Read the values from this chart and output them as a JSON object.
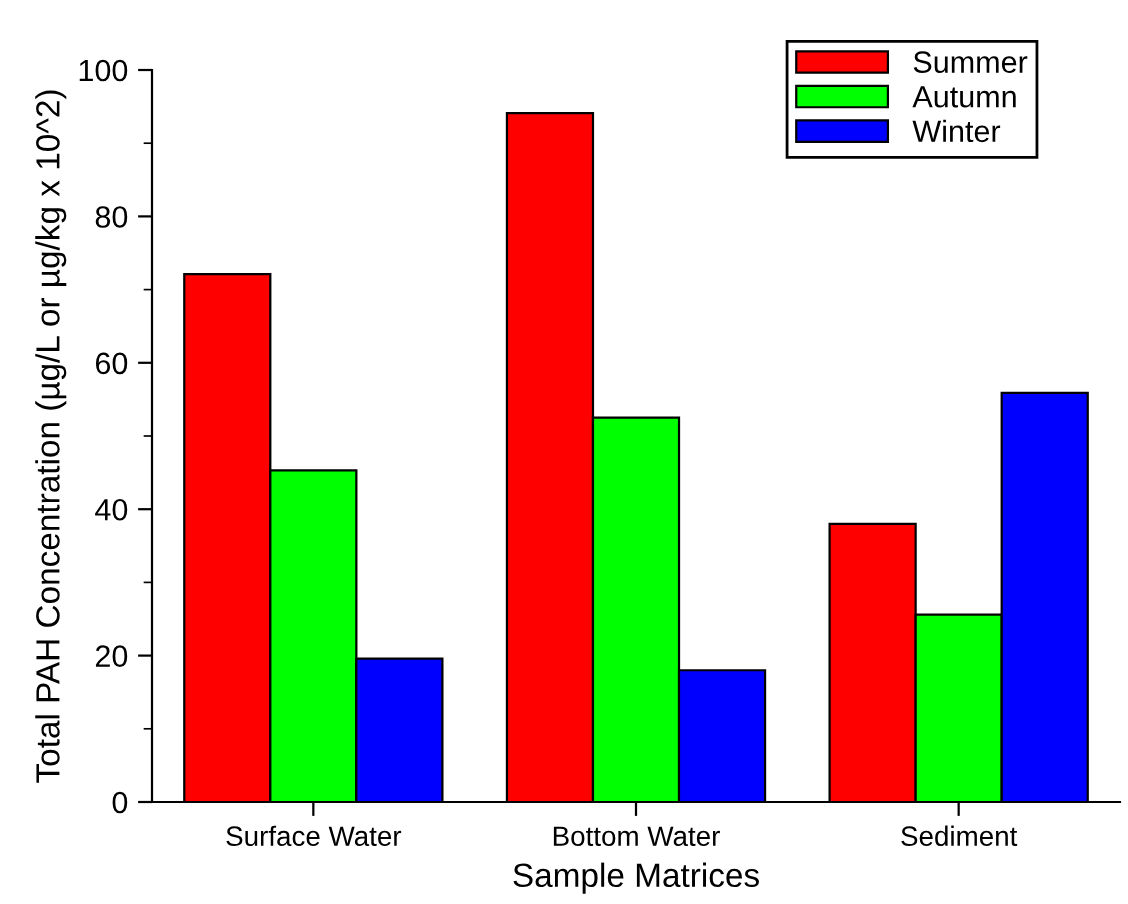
{
  "chart_data": {
    "type": "bar",
    "xlabel": "Sample Matrices",
    "ylabel": "Total PAH Concentration (µg/L or µg/kg x 10^2)",
    "categories": [
      "Surface Water",
      "Bottom Water",
      "Sediment"
    ],
    "series": [
      {
        "name": "Summer",
        "color": "#ff0000",
        "values": [
          72.1,
          94.1,
          38.0
        ]
      },
      {
        "name": "Autumn",
        "color": "#00ff00",
        "values": [
          45.3,
          52.5,
          25.6
        ]
      },
      {
        "name": "Winter",
        "color": "#0000ff",
        "values": [
          19.6,
          18.0,
          55.9
        ]
      }
    ],
    "ylim": [
      0,
      100
    ],
    "yticks": [
      0,
      {
        "value": 10,
        "label": null
      },
      20,
      {
        "value": 30,
        "label": null
      },
      40,
      {
        "value": 50,
        "label": null
      },
      60,
      {
        "value": 70,
        "label": null
      },
      80,
      {
        "value": 90,
        "label": null
      },
      100
    ],
    "grid": false,
    "legend": "top right"
  }
}
